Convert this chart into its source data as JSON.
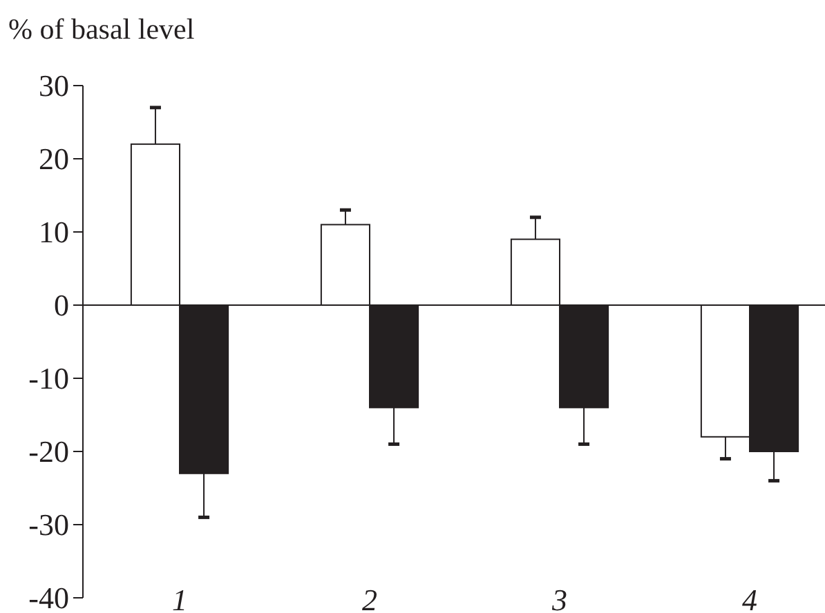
{
  "chart_data": {
    "type": "bar",
    "ylabel": "% of basal level",
    "categories": [
      "1",
      "2",
      "3",
      "4"
    ],
    "series": [
      {
        "color": "#ffffff",
        "values": [
          22,
          11,
          9,
          -18
        ],
        "errors": [
          [
            22,
            27
          ],
          [
            11,
            13
          ],
          [
            9,
            12
          ],
          [
            -21,
            -18
          ]
        ]
      },
      {
        "color": "#231f20",
        "values": [
          -23,
          -14,
          -14,
          -20
        ],
        "errors": [
          [
            -29,
            -23
          ],
          [
            -19,
            -14
          ],
          [
            -19,
            -14
          ],
          [
            -24,
            -20
          ]
        ]
      }
    ],
    "ylim": [
      -40,
      30
    ],
    "yticks": [
      -40,
      -30,
      -20,
      -10,
      0,
      10,
      20,
      30
    ]
  }
}
